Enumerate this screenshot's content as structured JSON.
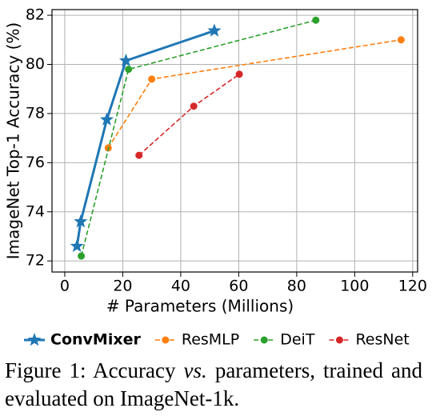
{
  "chart_data": {
    "type": "line",
    "xlabel": "# Parameters (Millions)",
    "ylabel": "ImageNet Top-1 Accuracy (%)",
    "xlim": [
      -4.4,
      121.7
    ],
    "ylim": [
      71.55,
      82.23
    ],
    "xticks": [
      0,
      20,
      40,
      60,
      80,
      100,
      120
    ],
    "yticks": [
      72,
      74,
      76,
      78,
      80,
      82
    ],
    "grid": true,
    "legend": "bottom",
    "series": [
      {
        "name": "ConvMixer",
        "color": "#1f77b4",
        "marker": "star",
        "linestyle": "solid",
        "bold": true,
        "x": [
          4.2,
          5.5,
          14.5,
          21.1,
          51.6
        ],
        "values": [
          72.6,
          73.6,
          77.75,
          80.15,
          81.37
        ]
      },
      {
        "name": "ResMLP",
        "color": "#ff7f0e",
        "marker": "circle",
        "linestyle": "dashed",
        "bold": false,
        "x": [
          15,
          30,
          116
        ],
        "values": [
          76.6,
          79.4,
          81.0
        ]
      },
      {
        "name": "DeiT",
        "color": "#2ca02c",
        "marker": "circle",
        "linestyle": "dashed",
        "bold": false,
        "x": [
          5.7,
          22,
          86.6
        ],
        "values": [
          72.2,
          79.8,
          81.8
        ]
      },
      {
        "name": "ResNet",
        "color": "#d62728",
        "marker": "circle",
        "linestyle": "dashed",
        "bold": false,
        "x": [
          25.6,
          44.5,
          60.2
        ],
        "values": [
          76.3,
          78.3,
          79.6
        ]
      }
    ]
  },
  "caption": {
    "before": "Figure 1:  Accuracy",
    "italic": "vs.",
    "after": "parameters, trained and evaluated on ImageNet-1k."
  }
}
